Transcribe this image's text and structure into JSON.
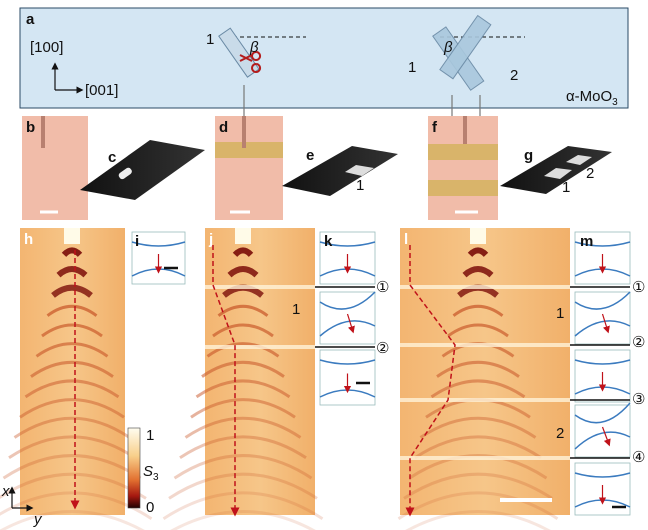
{
  "panel_letters": [
    "a",
    "b",
    "c",
    "d",
    "e",
    "f",
    "g",
    "h",
    "i",
    "j",
    "k",
    "l",
    "m"
  ],
  "panel_a": {
    "direction_vertical": "[100]",
    "direction_horizontal": "[001]",
    "angle": "β",
    "single_slab": "1",
    "twin_slabs": [
      "1",
      "2"
    ],
    "material": "α-MoO",
    "material_subscript": "3"
  },
  "panel_e": {
    "slab": "1"
  },
  "panel_g": {
    "slabs": [
      "1",
      "2"
    ]
  },
  "panel_j": {
    "region": "1",
    "interfaces": [
      "①",
      "②"
    ]
  },
  "panel_l": {
    "regions": [
      "1",
      "2"
    ],
    "interfaces": [
      "①",
      "②",
      "③",
      "④"
    ]
  },
  "colorbar": {
    "max": "1",
    "label": "S",
    "label_subscript": "3",
    "min": "0"
  },
  "axes": {
    "x": "x",
    "y": "y"
  }
}
